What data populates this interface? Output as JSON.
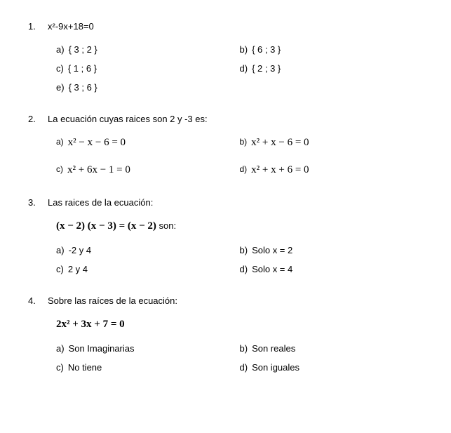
{
  "q1": {
    "num": "1.",
    "text": "x²-9x+18=0",
    "opts": {
      "a": "{ 3 ; 2 }",
      "b": "{ 6 ; 3 }",
      "c": "{ 1 ; 6 }",
      "d": "{ 2 ; 3 }",
      "e": "{ 3 ; 6 }"
    }
  },
  "q2": {
    "num": "2.",
    "text": "La ecuación cuyas raices son 2 y -3 es:",
    "opts": {
      "a": "x² − x − 6 = 0",
      "b": "x² + x − 6 = 0",
      "c": "x² + 6x − 1 = 0",
      "d": "x² + x + 6 = 0"
    }
  },
  "q3": {
    "num": "3.",
    "text": "Las raices de la ecuación:",
    "expr": "(x − 2) (x − 3) = (x − 2)",
    "expr_suffix": "   son:",
    "opts": {
      "a": "-2 y 4",
      "b": "Solo x = 2",
      "c": "2 y 4",
      "d": "Solo x = 4"
    }
  },
  "q4": {
    "num": "4.",
    "text": "Sobre las raíces de la ecuación:",
    "expr": "2x² + 3x + 7 = 0",
    "opts": {
      "a": "Son Imaginarias",
      "b": "Son reales",
      "c": "No tiene",
      "d": "Son iguales"
    }
  },
  "labels": {
    "a": "a)",
    "b": "b)",
    "c": "c)",
    "d": "d)",
    "e": "e)"
  }
}
